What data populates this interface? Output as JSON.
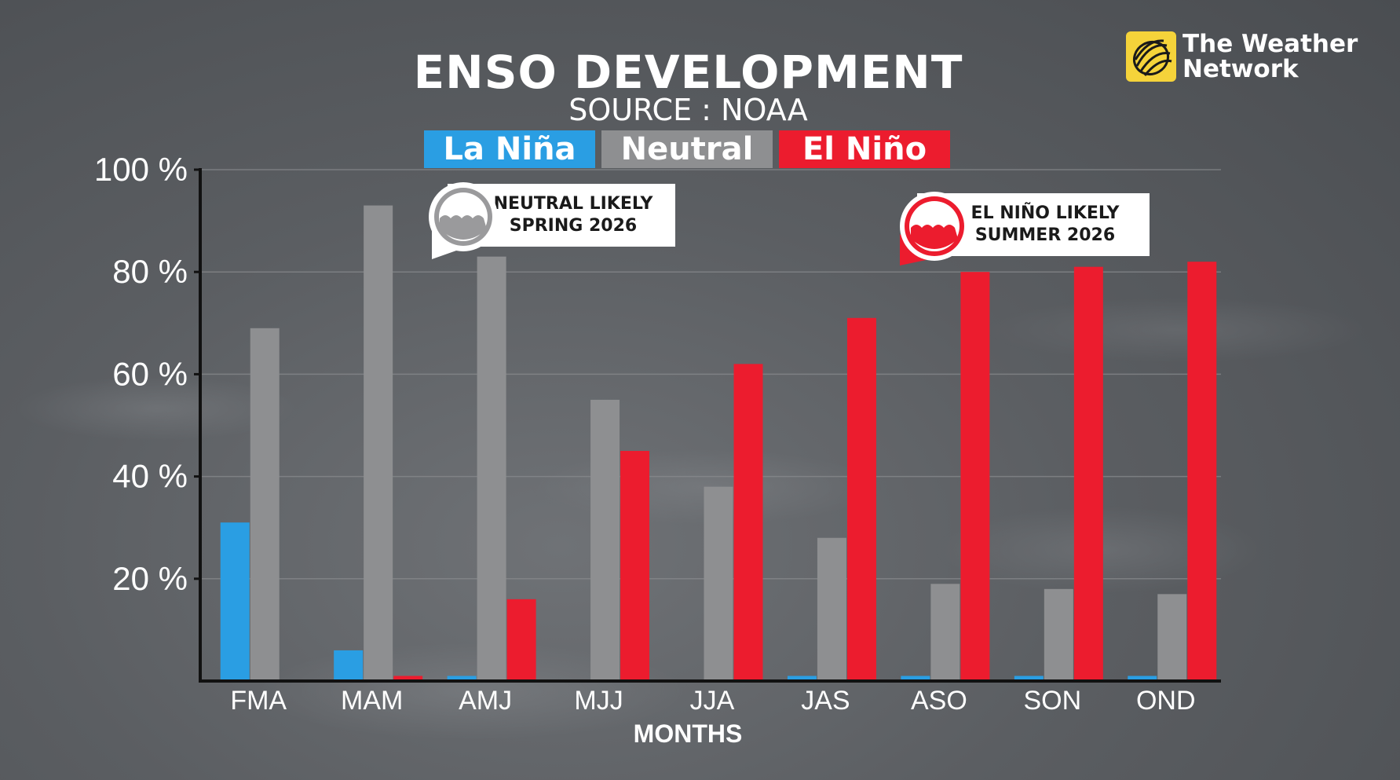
{
  "header": {
    "title": "ENSO DEVELOPMENT",
    "subtitle": "SOURCE : NOAA",
    "logo_line1": "The Weather",
    "logo_line2": "Network"
  },
  "legend": [
    {
      "label": "La Niña",
      "color": "#2a9ee3"
    },
    {
      "label": "Neutral",
      "color": "#8e8f91"
    },
    {
      "label": "El Niño",
      "color": "#ec1c2e"
    }
  ],
  "callouts": {
    "neutral_line1": "NEUTRAL LIKELY",
    "neutral_line2": "SPRING 2026",
    "elnino_line1": "EL NIÑO LIKELY",
    "elnino_line2": "SUMMER 2026"
  },
  "chart_data": {
    "type": "bar",
    "xlabel": "MONTHS",
    "ylabel": "",
    "ylim": [
      0,
      100
    ],
    "yticks": [
      20,
      40,
      60,
      80,
      100
    ],
    "ytick_labels": [
      "20 %",
      "40 %",
      "60 %",
      "80 %",
      "100 %"
    ],
    "grid": true,
    "categories": [
      "FMA",
      "MAM",
      "AMJ",
      "MJJ",
      "JJA",
      "JAS",
      "ASO",
      "SON",
      "OND"
    ],
    "series": [
      {
        "name": "La Niña",
        "color": "#2a9ee3",
        "values": [
          31,
          6,
          1,
          0,
          0,
          1,
          1,
          1,
          1
        ]
      },
      {
        "name": "Neutral",
        "color": "#8e8f91",
        "values": [
          69,
          93,
          83,
          55,
          38,
          28,
          19,
          18,
          17
        ]
      },
      {
        "name": "El Niño",
        "color": "#ec1c2e",
        "values": [
          0,
          1,
          16,
          45,
          62,
          71,
          80,
          81,
          82
        ]
      }
    ]
  }
}
